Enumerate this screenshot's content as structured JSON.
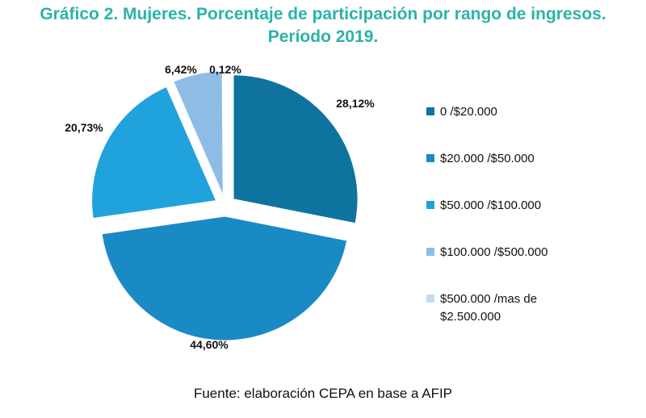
{
  "title_line1": "Gráfico 2. Mujeres. Porcentaje de participación por rango de ingresos.",
  "title_line2": "Período 2019.",
  "source": "Fuente: elaboración CEPA en base a AFIP",
  "chart_data": {
    "type": "pie",
    "title": "Gráfico 2. Mujeres. Porcentaje de participación por rango de ingresos. Período 2019.",
    "exploded": true,
    "legend_position": "right",
    "slices": [
      {
        "label": "0  /$20.000",
        "value": 28.12,
        "display": "28,12%",
        "color": "#0F73A0"
      },
      {
        "label": "$20.000 /$50.000",
        "value": 44.6,
        "display": "44,60%",
        "color": "#1A8AC4"
      },
      {
        "label": "$50.000 /$100.000",
        "value": 20.73,
        "display": "20,73%",
        "color": "#20A2DD"
      },
      {
        "label": "$100.000 /$500.000",
        "value": 6.42,
        "display": "6,42%",
        "color": "#8DBDE5"
      },
      {
        "label": "$500.000 /mas de\n$2.500.000",
        "value": 0.12,
        "display": "0,12%",
        "color": "#C2DCF2"
      }
    ]
  }
}
